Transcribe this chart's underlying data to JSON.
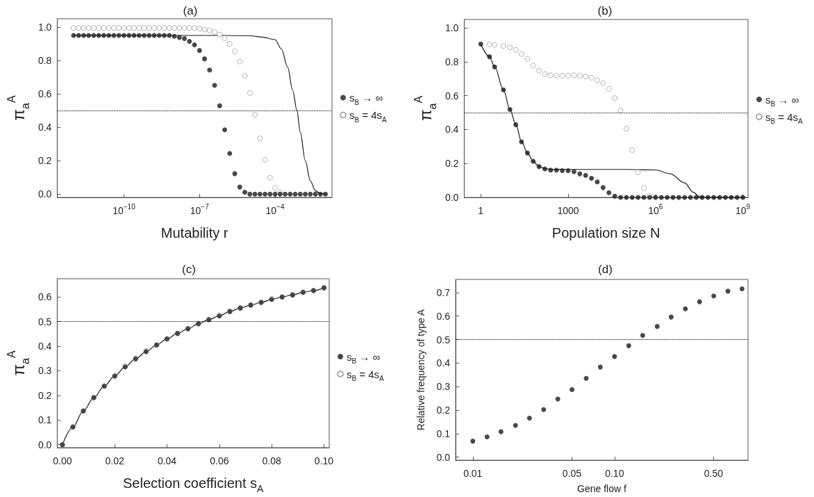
{
  "chart_data": [
    {
      "type": "scatter",
      "title": "(a)",
      "xlabel": "Mutability r",
      "ylabel": "π$_{a}$$^{A}$",
      "log": "x",
      "legend": "right",
      "marker": "circle",
      "xlim": [
        2.24e-13,
        0.0182
      ],
      "xticks": [
        {
          "value": 1e-10,
          "label": "10$^{−10}$"
        },
        {
          "value": 1e-07,
          "label": "10$^{−7}$"
        },
        {
          "value": 0.0001,
          "label": "10$^{−4}$"
        }
      ],
      "ylim": [
        -0.02,
        1.05
      ],
      "yticks": [
        {
          "value": 0,
          "label": "0.0"
        },
        {
          "value": 0.2,
          "label": "0.2"
        },
        {
          "value": 0.4,
          "label": "0.4"
        },
        {
          "value": 0.6,
          "label": "0.6"
        },
        {
          "value": 0.8,
          "label": "0.8"
        },
        {
          "value": 1,
          "label": "1.0"
        }
      ],
      "ref_lines": [
        {
          "axis": "y",
          "value": 0.5,
          "color": "#000000",
          "line_style": "dotted"
        }
      ],
      "x": [
        1e-12,
        1.585e-12,
        2.512e-12,
        3.981e-12,
        6.31e-12,
        1e-11,
        1.585e-11,
        2.512e-11,
        3.981e-11,
        6.31e-11,
        1e-10,
        1.585e-10,
        2.512e-10,
        3.981e-10,
        6.31e-10,
        1e-09,
        1.585e-09,
        2.512e-09,
        3.981e-09,
        6.31e-09,
        1e-08,
        1.585e-08,
        2.512e-08,
        3.981e-08,
        6.31e-08,
        1e-07,
        1.585e-07,
        2.512e-07,
        3.981e-07,
        6.31e-07,
        1e-06,
        1.585e-06,
        2.512e-06,
        3.981e-06,
        6.31e-06,
        1e-05,
        1.585e-05,
        2.512e-05,
        3.981e-05,
        6.31e-05,
        0.0001,
        0.0001585,
        0.0002512,
        0.0003981,
        0.000631,
        0.001,
        0.001585,
        0.002512,
        0.003981,
        0.00631,
        0.01
      ],
      "series": [
        {
          "type": "line",
          "marker": "none",
          "color": "#1a1a1a",
          "x": [
            1e-12,
            1e-06,
            1e-05,
            3.162e-05,
            0.0001,
            0.0001778,
            0.0003162,
            0.0005012,
            0.0007413,
            0.001,
            0.001585,
            0.002512,
            0.003981,
            0.00631,
            0.01
          ],
          "values": [
            0.95,
            0.95,
            0.948,
            0.94,
            0.925,
            0.87,
            0.76,
            0.62,
            0.5,
            0.37,
            0.2,
            0.08,
            0.02,
            0.002,
            0
          ]
        },
        {
          "name": "s$_{B}$ → ∞",
          "color": "#1a1a1a",
          "values": [
            0.95,
            0.95,
            0.95,
            0.95,
            0.95,
            0.95,
            0.95,
            0.95,
            0.95,
            0.95,
            0.95,
            0.95,
            0.95,
            0.95,
            0.95,
            0.95,
            0.95,
            0.95,
            0.95,
            0.95,
            0.945,
            0.938,
            0.931,
            0.915,
            0.894,
            0.86,
            0.81,
            0.743,
            0.651,
            0.529,
            0.385,
            0.243,
            0.122,
            0.042,
            0.011,
            0,
            0,
            0,
            0,
            0,
            0,
            0,
            0,
            0,
            0,
            0,
            0,
            0,
            0,
            0,
            0
          ]
        },
        {
          "name": "s$_{B}$ = 4s$_{A}$",
          "color": "#999999",
          "values": [
            0.995,
            0.995,
            0.995,
            0.995,
            0.995,
            0.995,
            0.995,
            0.995,
            0.995,
            0.995,
            0.995,
            0.995,
            0.995,
            0.995,
            0.995,
            0.995,
            0.995,
            0.995,
            0.995,
            0.995,
            0.995,
            0.995,
            0.995,
            0.995,
            0.995,
            0.99,
            0.985,
            0.98,
            0.97,
            0.955,
            0.934,
            0.9,
            0.855,
            0.794,
            0.709,
            0.605,
            0.475,
            0.334,
            0.205,
            0.098,
            0.037,
            0.011,
            null,
            null,
            null,
            null,
            null,
            null,
            null,
            null,
            null
          ]
        }
      ]
    },
    {
      "type": "scatter",
      "title": "(b)",
      "xlabel": "Population size N",
      "ylabel": "π$_{a}$$^{A}$",
      "log": "x",
      "legend": "right",
      "marker": "circle",
      "xlim": [
        0.27,
        1500000000.0
      ],
      "xticks": [
        {
          "value": 1,
          "label": "1"
        },
        {
          "value": 1000,
          "label": "1000"
        },
        {
          "value": 1000000.0,
          "label": "10$^{6}$"
        },
        {
          "value": 1000000000.0,
          "label": "10$^{9}$"
        }
      ],
      "ylim": [
        0,
        1.05
      ],
      "yticks": [
        {
          "value": 0,
          "label": "0.0"
        },
        {
          "value": 0.2,
          "label": "0.2"
        },
        {
          "value": 0.4,
          "label": "0.4"
        },
        {
          "value": 0.6,
          "label": "0.6"
        },
        {
          "value": 0.8,
          "label": "0.8"
        },
        {
          "value": 1,
          "label": "1.0"
        }
      ],
      "ref_lines": [
        {
          "axis": "y",
          "value": 0.5,
          "color": "#000000",
          "line_style": "dotted"
        }
      ],
      "series": [
        {
          "type": "line",
          "marker": "none",
          "color": "#1a1a1a",
          "x": [
            1,
            2,
            3,
            6,
            10,
            16,
            25,
            40,
            63,
            100,
            158.5,
            251.2,
            1000,
            100000.0,
            1000000.0,
            3162000.0,
            10000000.0,
            20000000.0,
            31620000.0,
            50000000.0,
            1000000000.0
          ],
          "values": [
            0.905,
            0.83,
            0.77,
            0.635,
            0.52,
            0.43,
            0.33,
            0.262,
            0.213,
            0.182,
            0.17,
            0.166,
            0.165,
            0.165,
            0.162,
            0.14,
            0.086,
            0.03,
            0.005,
            0,
            0
          ]
        },
        {
          "name": "s$_{B}$ → ∞",
          "color": "#1a1a1a",
          "x": [
            1,
            2,
            3,
            6,
            10,
            16,
            25,
            40,
            63,
            100,
            158.5,
            251.2,
            398.1,
            631,
            1000,
            1585,
            2512,
            3981,
            6310,
            10000.0,
            15850.0,
            25120.0,
            39810.0,
            63100.0,
            100000.0,
            158500.0,
            251200.0,
            398100.0,
            631000.0,
            1000000.0,
            1585000.0,
            2512000.0,
            3981000.0,
            6310000.0,
            10000000.0,
            15850000.0,
            25120000.0,
            39810000.0,
            63100000.0,
            100000000.0,
            158500000.0,
            251200000.0,
            398100000.0,
            631000000.0,
            1000000000.0
          ],
          "values": [
            0.905,
            0.83,
            0.77,
            0.635,
            0.519,
            0.429,
            0.328,
            0.262,
            0.213,
            0.182,
            0.168,
            0.161,
            0.161,
            0.158,
            0.158,
            0.152,
            0.139,
            0.13,
            0.113,
            0.091,
            0.058,
            0.028,
            0.007,
            0,
            0,
            0,
            0,
            0,
            0,
            0,
            0,
            0,
            0,
            0,
            0,
            0,
            0,
            0,
            0,
            0,
            0,
            0,
            0,
            0,
            0
          ]
        },
        {
          "name": "s$_{B}$ = 4s$_{A}$",
          "color": "#999999",
          "x": [
            2,
            3,
            6,
            10,
            16,
            25,
            40,
            63,
            100,
            158.5,
            251.2,
            398.1,
            631,
            1000,
            1585,
            2512,
            3981,
            6310,
            10000.0,
            15850.0,
            25120.0,
            39810.0,
            63100.0,
            100000.0,
            158500.0,
            251200.0,
            398100.0,
            631000.0
          ],
          "values": [
            0.903,
            0.9,
            0.894,
            0.885,
            0.871,
            0.846,
            0.818,
            0.779,
            0.748,
            0.728,
            0.721,
            0.719,
            0.718,
            0.719,
            0.721,
            0.718,
            0.714,
            0.706,
            0.691,
            0.673,
            0.64,
            0.586,
            0.513,
            0.405,
            0.279,
            0.149,
            0.055,
            0.009
          ]
        }
      ]
    },
    {
      "type": "scatter",
      "title": "(c)",
      "xlabel": "Selection coefficient s$_{A}$",
      "ylabel": "π$_{a}$$^{A}$",
      "legend": "right",
      "marker": "circle",
      "xlim": [
        -0.002,
        0.102
      ],
      "xticks": [
        {
          "value": 0,
          "label": "0.00"
        },
        {
          "value": 0.02,
          "label": "0.02"
        },
        {
          "value": 0.04,
          "label": "0.04"
        },
        {
          "value": 0.06,
          "label": "0.06"
        },
        {
          "value": 0.08,
          "label": "0.08"
        },
        {
          "value": 0.1,
          "label": "0.10"
        }
      ],
      "ylim": [
        -0.012,
        0.674
      ],
      "yticks": [
        {
          "value": 0,
          "label": "0.0"
        },
        {
          "value": 0.1,
          "label": "0.1"
        },
        {
          "value": 0.2,
          "label": "0.2"
        },
        {
          "value": 0.3,
          "label": "0.3"
        },
        {
          "value": 0.4,
          "label": "0.4"
        },
        {
          "value": 0.5,
          "label": "0.5"
        },
        {
          "value": 0.6,
          "label": "0.6"
        }
      ],
      "ref_lines": [
        {
          "axis": "y",
          "value": 0.5,
          "color": "#000000",
          "line_style": "dotted"
        }
      ],
      "x": [
        0,
        0.004,
        0.008,
        0.012,
        0.016,
        0.02,
        0.024,
        0.028,
        0.032,
        0.036,
        0.04,
        0.044,
        0.048,
        0.052,
        0.056,
        0.06,
        0.064,
        0.068,
        0.072,
        0.076,
        0.08,
        0.084,
        0.088,
        0.092,
        0.096,
        0.1
      ],
      "series": [
        {
          "type": "line",
          "marker": "none",
          "color": "#1a1a1a",
          "values": [
            0,
            0.072,
            0.137,
            0.191,
            0.238,
            0.279,
            0.316,
            0.349,
            0.378,
            0.405,
            0.43,
            0.452,
            0.471,
            0.491,
            0.508,
            0.523,
            0.541,
            0.555,
            0.567,
            0.578,
            0.59,
            0.6,
            0.608,
            0.619,
            0.626,
            0.637
          ]
        },
        {
          "name": "s$_{B}$ → ∞",
          "color": "#1a1a1a",
          "values": [
            0,
            0.072,
            0.137,
            0.191,
            0.238,
            0.279,
            0.316,
            0.349,
            0.378,
            0.405,
            0.43,
            0.452,
            0.471,
            0.491,
            0.508,
            0.523,
            0.541,
            0.555,
            0.567,
            0.578,
            0.59,
            0.6,
            0.608,
            0.619,
            0.626,
            0.637
          ]
        },
        {
          "name": "s$_{B}$ = 4s$_{A}$",
          "color": "#999999",
          "values": [
            0,
            0.072,
            0.137,
            0.191,
            0.238,
            0.279,
            0.319,
            0.349,
            0.381,
            0.405,
            0.43,
            0.452,
            0.471,
            0.491,
            0.508,
            0.526,
            0.541,
            0.555,
            0.567,
            0.578,
            0.593,
            0.6,
            0.61,
            0.619,
            0.626,
            0.637
          ]
        }
      ]
    },
    {
      "type": "scatter",
      "title": "(d)",
      "xlabel": "Gene flow f",
      "ylabel": "Relative frequency of type A",
      "log": "x",
      "marker": "circle",
      "xlim": [
        0.00756,
        0.875
      ],
      "xticks": [
        {
          "value": 0.01,
          "label": "0.01"
        },
        {
          "value": 0.05,
          "label": "0.05"
        },
        {
          "value": 0.1,
          "label": "0.10"
        },
        {
          "value": 0.5,
          "label": "0.50"
        }
      ],
      "ylim": [
        -0.013,
        0.756
      ],
      "yticks": [
        {
          "value": 0,
          "label": "0.0"
        },
        {
          "value": 0.1,
          "label": "0.1"
        },
        {
          "value": 0.2,
          "label": "0.2"
        },
        {
          "value": 0.3,
          "label": "0.3"
        },
        {
          "value": 0.4,
          "label": "0.4"
        },
        {
          "value": 0.5,
          "label": "0.5"
        },
        {
          "value": 0.6,
          "label": "0.6"
        },
        {
          "value": 0.7,
          "label": "0.7"
        }
      ],
      "ref_lines": [
        {
          "axis": "y",
          "value": 0.5,
          "color": "#000000",
          "line_style": "dotted"
        }
      ],
      "series": [
        {
          "color": "#1a1a1a",
          "x": [
            0.01,
            0.0126,
            0.0158,
            0.02,
            0.0251,
            0.0316,
            0.0398,
            0.0501,
            0.0631,
            0.0794,
            0.1,
            0.126,
            0.158,
            0.2,
            0.251,
            0.316,
            0.398,
            0.501,
            0.631,
            0.794
          ],
          "values": [
            0.068,
            0.086,
            0.108,
            0.135,
            0.166,
            0.202,
            0.247,
            0.287,
            0.335,
            0.383,
            0.428,
            0.474,
            0.518,
            0.556,
            0.596,
            0.631,
            0.661,
            0.686,
            0.706,
            0.716
          ]
        }
      ]
    }
  ]
}
